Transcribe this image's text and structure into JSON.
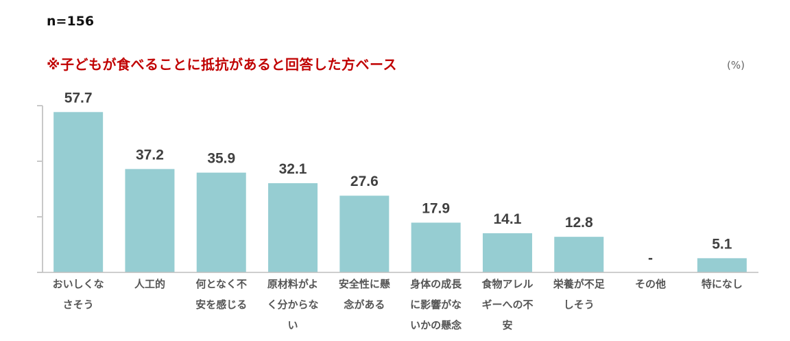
{
  "sample_size": "n=156",
  "base_note": "※子どもが食べることに抵抗があると回答した方ベース",
  "chart_data": {
    "type": "bar",
    "unit_label": "(%)",
    "categories": [
      [
        "おいしくな",
        "さそう"
      ],
      [
        "人工的"
      ],
      [
        "何となく不",
        "安を感じる"
      ],
      [
        "原材料がよ",
        "く分からな",
        "い"
      ],
      [
        "安全性に懸",
        "念がある"
      ],
      [
        "身体の成長",
        "に影響がな",
        "いかの懸念"
      ],
      [
        "食物アレル",
        "ギーへの不",
        "安"
      ],
      [
        "栄養が不足",
        "しそう"
      ],
      [
        "その他"
      ],
      [
        "特になし"
      ]
    ],
    "values": [
      57.7,
      37.2,
      35.9,
      32.1,
      27.6,
      17.9,
      14.1,
      12.8,
      null,
      5.1
    ],
    "value_labels": [
      "57.7",
      "37.2",
      "35.9",
      "32.1",
      "27.6",
      "17.9",
      "14.1",
      "12.8",
      "-",
      "5.1"
    ],
    "ylim": [
      0,
      60
    ],
    "yticks": [
      0,
      20,
      40,
      60
    ],
    "title": "",
    "xlabel": "",
    "ylabel": "",
    "grid": false,
    "bar_color": "#96CDD2"
  }
}
